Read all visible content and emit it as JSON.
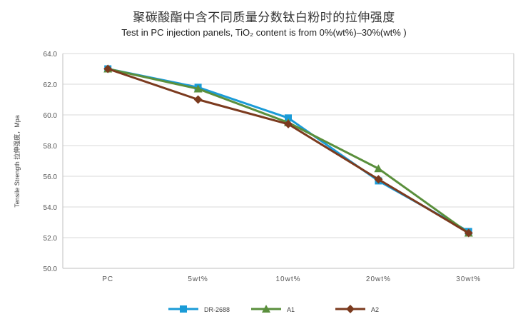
{
  "chart_data": {
    "type": "line",
    "title": "聚碳酸酯中含不同质量分数钛白粉时的拉伸强度",
    "subtitle": "Test in PC injection panels, TiO₂ content is from 0%(wt%)–30%(wt% )",
    "xlabel": "",
    "ylabel": "Tensile Strength 拉伸强度，Mpa",
    "categories": [
      "PC",
      "5wt%",
      "10wt%",
      "20wt%",
      "30wt%"
    ],
    "ylim": [
      50,
      64
    ],
    "yticks": [
      "50.0",
      "52.0",
      "54.0",
      "56.0",
      "58.0",
      "60.0",
      "62.0",
      "64.0"
    ],
    "grid": "horizontal",
    "legend_position": "bottom",
    "series": [
      {
        "name": "DR-2688",
        "color": "#1a9bd7",
        "marker": "square",
        "values": [
          63.0,
          61.8,
          59.8,
          55.7,
          52.4
        ]
      },
      {
        "name": "A1",
        "color": "#5a8f3c",
        "marker": "triangle",
        "values": [
          63.0,
          61.7,
          59.5,
          56.5,
          52.3
        ]
      },
      {
        "name": "A2",
        "color": "#7b3a1e",
        "marker": "diamond",
        "values": [
          63.0,
          61.0,
          59.4,
          55.8,
          52.3
        ]
      }
    ]
  }
}
